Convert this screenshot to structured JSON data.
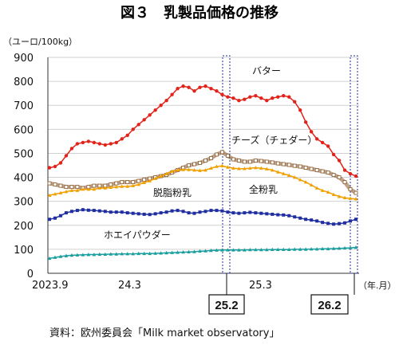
{
  "chart_data": {
    "type": "line",
    "title": "図３　乳製品価格の推移",
    "ylabel": "（ユーロ/100kg）",
    "xlabel": "（年.月）",
    "ylim": [
      0,
      900
    ],
    "yticks": [
      "0",
      "100",
      "200",
      "300",
      "400",
      "500",
      "600",
      "700",
      "800",
      "900"
    ],
    "x_tick_labels": [
      "2023.9",
      "24.3",
      "25.3"
    ],
    "highlight_labels": [
      "25.2",
      "26.2"
    ],
    "source": "資料：欧州委員会「Milk market observatory」",
    "series": [
      {
        "name": "バター",
        "color": "#e2231a",
        "marker": "circle",
        "values": [
          440,
          445,
          460,
          490,
          520,
          540,
          545,
          550,
          545,
          540,
          535,
          540,
          545,
          560,
          575,
          600,
          620,
          640,
          660,
          680,
          700,
          720,
          745,
          770,
          780,
          775,
          760,
          775,
          780,
          770,
          760,
          745,
          735,
          730,
          720,
          725,
          735,
          740,
          730,
          720,
          730,
          735,
          740,
          735,
          715,
          680,
          630,
          590,
          560,
          545,
          530,
          495,
          470,
          430,
          415,
          405
        ]
      },
      {
        "name": "チーズ（チェダー）",
        "color": "#8b5a2b",
        "marker": "square",
        "values": [
          375,
          370,
          365,
          360,
          360,
          360,
          355,
          360,
          365,
          365,
          365,
          370,
          375,
          380,
          380,
          380,
          385,
          390,
          395,
          400,
          405,
          410,
          420,
          430,
          440,
          450,
          455,
          460,
          470,
          480,
          495,
          505,
          490,
          475,
          470,
          465,
          465,
          470,
          468,
          465,
          462,
          458,
          455,
          452,
          448,
          445,
          440,
          435,
          430,
          425,
          420,
          410,
          400,
          380,
          350,
          335
        ]
      },
      {
        "name": "全粉乳",
        "color": "#f0a000",
        "marker": "triangle",
        "values": [
          325,
          330,
          335,
          340,
          345,
          345,
          350,
          350,
          350,
          355,
          355,
          358,
          360,
          362,
          362,
          365,
          370,
          378,
          385,
          395,
          405,
          415,
          425,
          430,
          432,
          432,
          430,
          428,
          430,
          438,
          445,
          448,
          442,
          438,
          436,
          436,
          438,
          440,
          438,
          435,
          430,
          422,
          415,
          408,
          400,
          390,
          380,
          368,
          355,
          345,
          338,
          328,
          320,
          315,
          312,
          310
        ]
      },
      {
        "name": "脱脂粉乳",
        "color": "#1f2fa0",
        "marker": "square",
        "values": [
          225,
          230,
          240,
          252,
          258,
          262,
          265,
          263,
          262,
          260,
          258,
          255,
          255,
          255,
          252,
          250,
          248,
          246,
          245,
          248,
          252,
          255,
          260,
          262,
          258,
          252,
          250,
          255,
          258,
          262,
          262,
          260,
          255,
          252,
          250,
          252,
          254,
          252,
          250,
          248,
          246,
          244,
          243,
          240,
          235,
          230,
          225,
          222,
          218,
          212,
          208,
          205,
          207,
          210,
          218,
          225
        ]
      },
      {
        "name": "ホエイパウダー",
        "color": "#1a9e9e",
        "marker": "triangle",
        "values": [
          62,
          66,
          70,
          73,
          75,
          76,
          77,
          78,
          78,
          79,
          79,
          80,
          80,
          81,
          81,
          81,
          82,
          82,
          82,
          83,
          84,
          85,
          86,
          87,
          88,
          89,
          90,
          92,
          93,
          95,
          96,
          97,
          97,
          97,
          97,
          97,
          98,
          98,
          98,
          98,
          99,
          99,
          99,
          99,
          100,
          100,
          100,
          101,
          101,
          102,
          102,
          103,
          104,
          105,
          106,
          108
        ]
      }
    ]
  }
}
